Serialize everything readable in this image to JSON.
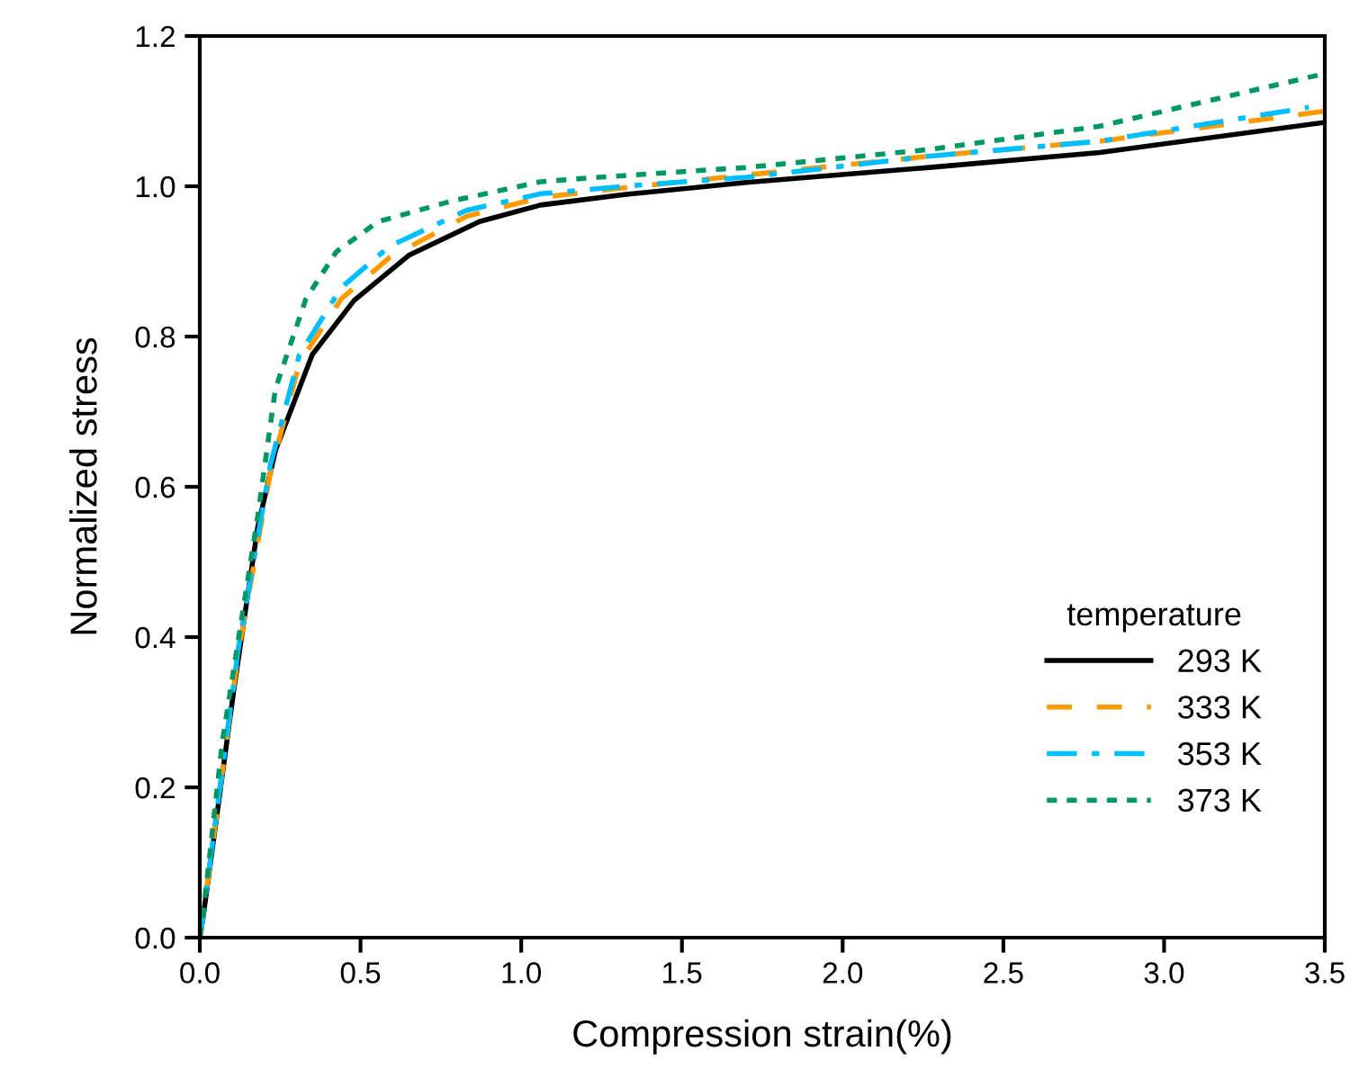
{
  "chart_data": {
    "type": "line",
    "xlabel": "Compression strain(%)",
    "ylabel": "Normalized stress",
    "legend_title": "temperature",
    "legend": "lower right",
    "grid": false,
    "xlim": [
      0,
      3.5
    ],
    "ylim": [
      0,
      1.2
    ],
    "xticks": [
      {
        "value": 0,
        "label": "0.0"
      },
      0.5,
      {
        "value": 1,
        "label": "1.0"
      },
      1.5,
      {
        "value": 2,
        "label": "2.0"
      },
      2.5,
      {
        "value": 3,
        "label": "3.0"
      },
      3.5
    ],
    "yticks": [
      {
        "value": 0,
        "label": "0.0"
      },
      0.2,
      0.4,
      0.6,
      0.8,
      {
        "value": 1,
        "label": "1.0"
      },
      1.2
    ],
    "series": [
      {
        "name": "293 K",
        "color": "#000000",
        "line_style": "solid",
        "x": [
          0,
          0.01,
          0.106,
          0.18,
          0.236,
          0.35,
          0.48,
          0.65,
          0.87,
          1.06,
          1.32,
          1.7,
          2.27,
          2.8,
          3.5
        ],
        "values": [
          0,
          0.026,
          0.33,
          0.546,
          0.649,
          0.776,
          0.848,
          0.908,
          0.953,
          0.975,
          0.989,
          1.005,
          1.025,
          1.045,
          1.085
        ]
      },
      {
        "name": "333 K",
        "color": "#ff9900",
        "line_style": "dashed",
        "x": [
          0,
          0.01,
          0.12,
          0.22,
          0.31,
          0.44,
          0.59,
          0.83,
          1.06,
          1.32,
          1.7,
          2.27,
          2.8,
          3.5
        ],
        "values": [
          0,
          0.028,
          0.38,
          0.62,
          0.765,
          0.85,
          0.905,
          0.96,
          0.985,
          0.998,
          1.015,
          1.04,
          1.06,
          1.1
        ]
      },
      {
        "name": "353 K",
        "color": "#00bfff",
        "line_style": "dashdot",
        "x": [
          0,
          0.01,
          0.12,
          0.22,
          0.31,
          0.44,
          0.59,
          0.83,
          1.06,
          1.32,
          1.7,
          2.27,
          2.8,
          3.45
        ],
        "values": [
          0,
          0.03,
          0.385,
          0.63,
          0.776,
          0.865,
          0.92,
          0.968,
          0.99,
          1.0,
          1.012,
          1.04,
          1.06,
          1.105
        ]
      },
      {
        "name": "373 K",
        "color": "#009966",
        "line_style": "dotted",
        "x": [
          0,
          0.01,
          0.07,
          0.18,
          0.235,
          0.33,
          0.425,
          0.555,
          0.78,
          1.06,
          1.24,
          1.7,
          2.27,
          2.8,
          3.5
        ],
        "values": [
          0,
          0.03,
          0.26,
          0.56,
          0.73,
          0.85,
          0.913,
          0.953,
          0.98,
          1.006,
          1.012,
          1.025,
          1.049,
          1.08,
          1.15
        ]
      }
    ]
  }
}
